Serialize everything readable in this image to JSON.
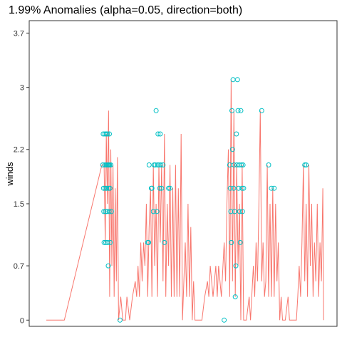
{
  "chart_data": {
    "type": "line",
    "title": "1.99% Anomalies (alpha=0.05, direction=both)",
    "xlabel": "",
    "ylabel": "winds",
    "x_range": [
      0,
      1000
    ],
    "ylim": [
      -0.08,
      3.86
    ],
    "y_ticks": [
      0,
      0.7,
      1.5,
      2.2,
      3,
      3.7
    ],
    "y_tick_labels": [
      "0",
      "0.7",
      "1.5",
      "2.2",
      "3",
      "3.7"
    ],
    "grid": false,
    "legend": "none",
    "series_color": "#F8766D",
    "anomaly_color": "#00BFC4",
    "series": [
      {
        "values": [
          [
            0,
            0
          ],
          [
            65,
            0
          ],
          [
            200,
            2.0
          ],
          [
            208,
            2.0
          ],
          [
            212,
            1.0
          ],
          [
            216,
            2.4
          ],
          [
            220,
            1.5
          ],
          [
            224,
            2.7
          ],
          [
            228,
            0.3
          ],
          [
            232,
            2.2
          ],
          [
            236,
            0.7
          ],
          [
            240,
            2.0
          ],
          [
            244,
            0.3
          ],
          [
            248,
            1.7
          ],
          [
            252,
            0.5
          ],
          [
            256,
            2.1
          ],
          [
            260,
            0
          ],
          [
            268,
            0.3
          ],
          [
            275,
            0
          ],
          [
            285,
            0
          ],
          [
            290,
            0.3
          ],
          [
            300,
            0
          ],
          [
            310,
            0.3
          ],
          [
            320,
            0.5
          ],
          [
            325,
            0.3
          ],
          [
            330,
            0.7
          ],
          [
            335,
            0.3
          ],
          [
            340,
            1.0
          ],
          [
            345,
            0.5
          ],
          [
            350,
            1.0
          ],
          [
            355,
            0.7
          ],
          [
            360,
            1.5
          ],
          [
            365,
            0.3
          ],
          [
            370,
            1.2
          ],
          [
            375,
            1.7
          ],
          [
            380,
            0.3
          ],
          [
            385,
            2.0
          ],
          [
            390,
            0.7
          ],
          [
            395,
            1.5
          ],
          [
            400,
            0.3
          ],
          [
            405,
            2.0
          ],
          [
            410,
            1.0
          ],
          [
            415,
            2.0
          ],
          [
            420,
            0.5
          ],
          [
            425,
            2.4
          ],
          [
            430,
            0.3
          ],
          [
            435,
            1.5
          ],
          [
            440,
            0.7
          ],
          [
            445,
            2.0
          ],
          [
            450,
            0.3
          ],
          [
            455,
            1.7
          ],
          [
            460,
            0.3
          ],
          [
            465,
            2.0
          ],
          [
            470,
            0.3
          ],
          [
            475,
            1.7
          ],
          [
            480,
            0.3
          ],
          [
            485,
            2.4
          ],
          [
            490,
            0
          ],
          [
            500,
            1.0
          ],
          [
            505,
            0.3
          ],
          [
            510,
            1.5
          ],
          [
            515,
            0.3
          ],
          [
            520,
            1.2
          ],
          [
            525,
            0
          ],
          [
            530,
            0.5
          ],
          [
            535,
            0
          ],
          [
            560,
            0
          ],
          [
            570,
            0.3
          ],
          [
            580,
            0.5
          ],
          [
            585,
            0.3
          ],
          [
            590,
            0.7
          ],
          [
            600,
            0.3
          ],
          [
            610,
            0.7
          ],
          [
            615,
            0.3
          ],
          [
            620,
            0.7
          ],
          [
            630,
            0.3
          ],
          [
            640,
            1.0
          ],
          [
            645,
            0.5
          ],
          [
            650,
            1.5
          ],
          [
            655,
            2.2
          ],
          [
            660,
            0.3
          ],
          [
            665,
            3.1
          ],
          [
            670,
            0.5
          ],
          [
            675,
            2.7
          ],
          [
            680,
            0.3
          ],
          [
            685,
            2.0
          ],
          [
            690,
            0.7
          ],
          [
            695,
            1.5
          ],
          [
            700,
            0
          ],
          [
            705,
            2.0
          ],
          [
            710,
            0
          ],
          [
            720,
            0
          ],
          [
            730,
            0.3
          ],
          [
            735,
            0
          ],
          [
            745,
            0.7
          ],
          [
            750,
            0.3
          ],
          [
            755,
            1.0
          ],
          [
            760,
            0.5
          ],
          [
            765,
            1.5
          ],
          [
            770,
            2.7
          ],
          [
            775,
            0.5
          ],
          [
            780,
            1.0
          ],
          [
            785,
            0.3
          ],
          [
            790,
            0.5
          ],
          [
            795,
            2.0
          ],
          [
            800,
            0.3
          ],
          [
            805,
            1.5
          ],
          [
            810,
            0.3
          ],
          [
            815,
            1.7
          ],
          [
            820,
            0.3
          ],
          [
            825,
            1.5
          ],
          [
            830,
            0.5
          ],
          [
            835,
            1.0
          ],
          [
            840,
            0
          ],
          [
            845,
            0.3
          ],
          [
            850,
            0
          ],
          [
            860,
            0
          ],
          [
            870,
            0.3
          ],
          [
            875,
            0
          ],
          [
            900,
            0
          ],
          [
            905,
            0.3
          ],
          [
            910,
            0.7
          ],
          [
            915,
            0.3
          ],
          [
            920,
            1.0
          ],
          [
            925,
            2.0
          ],
          [
            930,
            0.5
          ],
          [
            935,
            1.5
          ],
          [
            940,
            0.3
          ],
          [
            945,
            2.0
          ],
          [
            950,
            0.7
          ],
          [
            955,
            1.5
          ],
          [
            960,
            0.3
          ],
          [
            965,
            1.0
          ],
          [
            970,
            0.5
          ],
          [
            975,
            1.5
          ],
          [
            980,
            0.3
          ],
          [
            985,
            1.0
          ],
          [
            990,
            0.5
          ],
          [
            995,
            1.7
          ],
          [
            998,
            0
          ]
        ]
      }
    ],
    "anomalies": [
      [
        203,
        2.0
      ],
      [
        205,
        2.4
      ],
      [
        206,
        1.7
      ],
      [
        207,
        1.4
      ],
      [
        208,
        1.0
      ],
      [
        210,
        2.0
      ],
      [
        211,
        2.4
      ],
      [
        212,
        1.7
      ],
      [
        213,
        1.4
      ],
      [
        214,
        1.0
      ],
      [
        215,
        2.0
      ],
      [
        216,
        2.4
      ],
      [
        217,
        1.7
      ],
      [
        218,
        1.4
      ],
      [
        219,
        2.0
      ],
      [
        220,
        2.4
      ],
      [
        221,
        1.0
      ],
      [
        222,
        2.0
      ],
      [
        223,
        0.7
      ],
      [
        224,
        1.7
      ],
      [
        225,
        2.0
      ],
      [
        226,
        1.4
      ],
      [
        227,
        2.4
      ],
      [
        228,
        2.0
      ],
      [
        229,
        1.7
      ],
      [
        230,
        1.0
      ],
      [
        232,
        2.0
      ],
      [
        234,
        1.4
      ],
      [
        265,
        0
      ],
      [
        365,
        1.0
      ],
      [
        368,
        1.0
      ],
      [
        370,
        2.0
      ],
      [
        378,
        1.7
      ],
      [
        380,
        1.7
      ],
      [
        385,
        1.4
      ],
      [
        388,
        2.0
      ],
      [
        392,
        2.0
      ],
      [
        395,
        2.7
      ],
      [
        398,
        1.4
      ],
      [
        400,
        2.0
      ],
      [
        402,
        2.4
      ],
      [
        405,
        2.0
      ],
      [
        408,
        1.7
      ],
      [
        410,
        2.4
      ],
      [
        412,
        2.0
      ],
      [
        415,
        1.7
      ],
      [
        420,
        2.0
      ],
      [
        425,
        1.0
      ],
      [
        440,
        1.7
      ],
      [
        445,
        1.7
      ],
      [
        640,
        0
      ],
      [
        660,
        2.0
      ],
      [
        662,
        1.7
      ],
      [
        664,
        1.4
      ],
      [
        666,
        1.0
      ],
      [
        668,
        2.7
      ],
      [
        670,
        2.2
      ],
      [
        672,
        3.1
      ],
      [
        674,
        1.7
      ],
      [
        676,
        2.0
      ],
      [
        678,
        1.4
      ],
      [
        680,
        0.3
      ],
      [
        682,
        0.7
      ],
      [
        684,
        2.4
      ],
      [
        686,
        2.0
      ],
      [
        688,
        3.1
      ],
      [
        690,
        2.7
      ],
      [
        692,
        1.7
      ],
      [
        694,
        2.0
      ],
      [
        696,
        1.4
      ],
      [
        698,
        1.0
      ],
      [
        700,
        2.7
      ],
      [
        702,
        2.0
      ],
      [
        704,
        1.7
      ],
      [
        706,
        1.4
      ],
      [
        708,
        2.0
      ],
      [
        710,
        1.7
      ],
      [
        775,
        2.7
      ],
      [
        800,
        2.0
      ],
      [
        810,
        1.7
      ],
      [
        820,
        1.7
      ],
      [
        930,
        2.0
      ],
      [
        935,
        2.0
      ]
    ]
  }
}
